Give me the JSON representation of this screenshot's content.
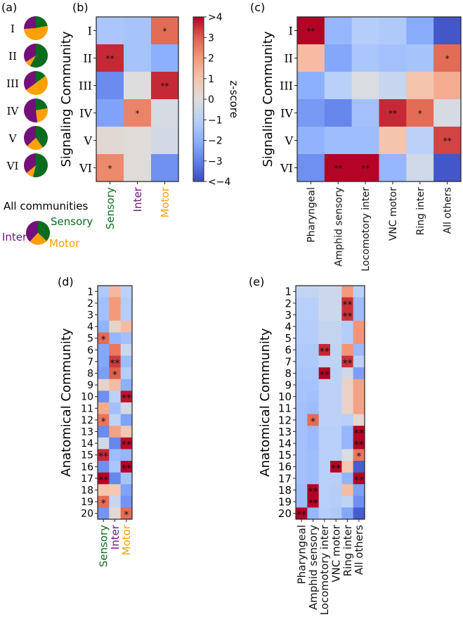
{
  "colors": {
    "sensory": "#0b6b1f",
    "inter": "#74107a",
    "motor": "#ffa000"
  },
  "chart_data": [
    {
      "id": "a",
      "panel_label": "(a)",
      "type": "pie",
      "title": "",
      "order": [
        "Sensory",
        "Motor",
        "Inter"
      ],
      "pies": [
        {
          "label": "I",
          "values": [
            0.22,
            0.52,
            0.26
          ]
        },
        {
          "label": "II",
          "values": [
            0.58,
            0.08,
            0.34
          ]
        },
        {
          "label": "III",
          "values": [
            0.15,
            0.5,
            0.35
          ]
        },
        {
          "label": "IV",
          "values": [
            0.22,
            0.26,
            0.52
          ]
        },
        {
          "label": "V",
          "values": [
            0.4,
            0.23,
            0.37
          ]
        },
        {
          "label": "VI",
          "values": [
            0.54,
            0.1,
            0.36
          ]
        }
      ],
      "summary": {
        "title": "All communities",
        "values": [
          0.37,
          0.25,
          0.38
        ],
        "labels": [
          "Sensory",
          "Motor",
          "Inter"
        ]
      }
    },
    {
      "id": "b",
      "panel_label": "(b)",
      "type": "heatmap",
      "ylabel": "Signaling Community",
      "xlabel": "",
      "rows": [
        "I",
        "II",
        "III",
        "IV",
        "V",
        "VI"
      ],
      "cols": [
        "Sensory",
        "Inter",
        "Motor"
      ],
      "col_colors": [
        "sensory",
        "inter",
        "motor"
      ],
      "values": [
        [
          -1.3,
          -1.4,
          2.8
        ],
        [
          3.6,
          -1.4,
          -2.0
        ],
        [
          -2.8,
          0.0,
          3.6
        ],
        [
          -2.3,
          2.4,
          -0.2
        ],
        [
          0.2,
          0.1,
          -0.3
        ],
        [
          2.3,
          0.1,
          -2.7
        ]
      ],
      "significance": [
        [
          "",
          "",
          "*"
        ],
        [
          "**",
          "",
          ""
        ],
        [
          "",
          "",
          "**"
        ],
        [
          "",
          "*",
          ""
        ],
        [
          "",
          "",
          ""
        ],
        [
          "*",
          "",
          ""
        ]
      ],
      "colorbar": {
        "label": "z-score",
        "range": [
          -4,
          4
        ],
        "ticks": [
          ">4",
          "3",
          "2",
          "1",
          "0",
          "−1",
          "−2",
          "−3",
          "<−4"
        ],
        "tick_values": [
          4,
          3,
          2,
          1,
          0,
          -1,
          -2,
          -3,
          -4
        ],
        "colormap": "coolwarm"
      }
    },
    {
      "id": "c",
      "panel_label": "(c)",
      "type": "heatmap",
      "ylabel": "Signaling Community",
      "xlabel": "",
      "rows": [
        "I",
        "II",
        "III",
        "IV",
        "V",
        "VI"
      ],
      "cols": [
        "Pharyngeal",
        "Amphid sensory",
        "Locomotory inter",
        "VNC motor",
        "Ring inter",
        "All others"
      ],
      "values": [
        [
          4.5,
          -1.8,
          -1.1,
          -1.2,
          -2.1,
          -3.8
        ],
        [
          1.2,
          -2.2,
          -1.3,
          -1.5,
          -1.4,
          2.8
        ],
        [
          -2.0,
          -1.0,
          -0.1,
          -0.6,
          1.0,
          1.6
        ],
        [
          -2.5,
          -2.9,
          -1.5,
          3.6,
          2.8,
          -0.2
        ],
        [
          -1.9,
          -1.6,
          -1.6,
          1.0,
          -0.9,
          3.3
        ],
        [
          -2.7,
          4.5,
          4.5,
          -1.8,
          -0.4,
          -3.8
        ]
      ],
      "significance": [
        [
          "**",
          "",
          "",
          "",
          "",
          ""
        ],
        [
          "",
          "",
          "",
          "",
          "",
          "*"
        ],
        [
          "",
          "",
          "",
          "",
          "",
          ""
        ],
        [
          "",
          "",
          "",
          "**",
          "*",
          ""
        ],
        [
          "",
          "",
          "",
          "",
          "",
          "**"
        ],
        [
          "",
          "**",
          "**",
          "",
          "",
          ""
        ]
      ]
    },
    {
      "id": "d",
      "panel_label": "(d)",
      "type": "heatmap",
      "ylabel": "Anatomical Community",
      "rows": [
        "1",
        "2",
        "3",
        "4",
        "5",
        "6",
        "7",
        "8",
        "9",
        "10",
        "11",
        "12",
        "13",
        "14",
        "15",
        "16",
        "17",
        "18",
        "19",
        "20"
      ],
      "cols": [
        "Sensory",
        "Inter",
        "Motor"
      ],
      "col_colors": [
        "sensory",
        "inter",
        "motor"
      ],
      "values": [
        [
          -1.2,
          1.3,
          -0.9
        ],
        [
          -1.5,
          2.0,
          -1.1
        ],
        [
          -1.5,
          2.0,
          -1.1
        ],
        [
          -1.9,
          0.4,
          1.2
        ],
        [
          2.8,
          -1.8,
          -1.5
        ],
        [
          -2.2,
          2.6,
          -0.5
        ],
        [
          -2.2,
          3.4,
          -1.6
        ],
        [
          -2.4,
          3.0,
          -1.1
        ],
        [
          0.4,
          1.2,
          -2.0
        ],
        [
          -2.7,
          -0.9,
          3.8
        ],
        [
          1.6,
          -1.5,
          -0.3
        ],
        [
          2.6,
          -0.8,
          -2.3
        ],
        [
          -2.8,
          1.8,
          0.9
        ],
        [
          -0.4,
          -2.9,
          3.9
        ],
        [
          3.6,
          -1.6,
          -1.8
        ],
        [
          -2.7,
          -1.3,
          4.2
        ],
        [
          4.2,
          -2.9,
          -1.4
        ],
        [
          1.0,
          0.9,
          -2.3
        ],
        [
          2.8,
          -0.6,
          -2.6
        ],
        [
          -2.6,
          0.2,
          2.8
        ]
      ],
      "significance": [
        [
          "",
          "",
          ""
        ],
        [
          "",
          "",
          ""
        ],
        [
          "",
          "",
          ""
        ],
        [
          "",
          "",
          ""
        ],
        [
          "*",
          "",
          ""
        ],
        [
          "",
          "",
          ""
        ],
        [
          "",
          "**",
          ""
        ],
        [
          "",
          "*",
          ""
        ],
        [
          "",
          "",
          ""
        ],
        [
          "",
          "",
          "**"
        ],
        [
          "",
          "",
          ""
        ],
        [
          "*",
          "",
          ""
        ],
        [
          "",
          "",
          ""
        ],
        [
          "",
          "",
          "**"
        ],
        [
          "**",
          "",
          ""
        ],
        [
          "",
          "",
          "**"
        ],
        [
          "**",
          "",
          ""
        ],
        [
          "",
          "",
          ""
        ],
        [
          "*",
          "",
          ""
        ],
        [
          "",
          "",
          "*"
        ]
      ]
    },
    {
      "id": "e",
      "panel_label": "(e)",
      "type": "heatmap",
      "ylabel": "Anatomical Community",
      "rows": [
        "1",
        "2",
        "3",
        "4",
        "5",
        "6",
        "7",
        "8",
        "9",
        "10",
        "11",
        "12",
        "13",
        "14",
        "15",
        "16",
        "17",
        "18",
        "19",
        "20"
      ],
      "cols": [
        "Pharyngeal",
        "Amphid sensory",
        "Locomotory inter",
        "VNC motor",
        "Ring inter",
        "All others"
      ],
      "values": [
        [
          -0.7,
          -0.7,
          -0.5,
          -0.5,
          2.0,
          -1.0
        ],
        [
          -1.0,
          -1.0,
          -0.5,
          -0.5,
          3.5,
          -1.6
        ],
        [
          -1.0,
          -1.0,
          -0.5,
          -0.5,
          3.5,
          -1.6
        ],
        [
          -1.1,
          -1.1,
          -0.7,
          -0.7,
          -1.1,
          2.1
        ],
        [
          -1.1,
          -1.1,
          -0.7,
          -0.7,
          -1.1,
          2.1
        ],
        [
          -1.2,
          -1.2,
          3.6,
          -0.8,
          2.1,
          -1.7
        ],
        [
          -1.2,
          -1.2,
          -0.8,
          -0.8,
          3.5,
          -0.9
        ],
        [
          -1.3,
          -1.3,
          4.4,
          -0.9,
          -0.3,
          -2.4
        ],
        [
          -1.4,
          -1.4,
          -0.9,
          -0.9,
          0.5,
          1.8
        ],
        [
          -1.4,
          -1.5,
          -0.9,
          -0.9,
          0.5,
          1.8
        ],
        [
          -1.5,
          -1.6,
          -0.9,
          -0.9,
          0.5,
          1.8
        ],
        [
          -1.5,
          2.8,
          -0.9,
          -0.9,
          -1.0,
          0.3
        ],
        [
          -1.5,
          -1.7,
          -1.0,
          -1.0,
          -1.8,
          4.0
        ],
        [
          -1.5,
          -1.7,
          -1.0,
          -1.0,
          -1.8,
          4.0
        ],
        [
          -1.5,
          -1.6,
          -1.0,
          -1.0,
          -0.1,
          2.6
        ],
        [
          -1.5,
          -1.6,
          -1.0,
          4.4,
          0.9,
          -3.7
        ],
        [
          -1.5,
          -1.6,
          -1.0,
          -1.0,
          -1.9,
          4.2
        ],
        [
          -1.6,
          4.4,
          -1.0,
          -1.1,
          1.2,
          -2.3
        ],
        [
          -1.6,
          4.4,
          -1.0,
          -1.1,
          -0.8,
          -2.7
        ],
        [
          4.4,
          -1.8,
          -1.1,
          -1.2,
          -2.2,
          -3.7
        ]
      ],
      "significance": [
        [
          "",
          "",
          "",
          "",
          "",
          ""
        ],
        [
          "",
          "",
          "",
          "",
          "**",
          ""
        ],
        [
          "",
          "",
          "",
          "",
          "**",
          ""
        ],
        [
          "",
          "",
          "",
          "",
          "",
          ""
        ],
        [
          "",
          "",
          "",
          "",
          "",
          ""
        ],
        [
          "",
          "",
          "**",
          "",
          "",
          ""
        ],
        [
          "",
          "",
          "",
          "",
          "**",
          ""
        ],
        [
          "",
          "",
          "**",
          "",
          "",
          ""
        ],
        [
          "",
          "",
          "",
          "",
          "",
          ""
        ],
        [
          "",
          "",
          "",
          "",
          "",
          ""
        ],
        [
          "",
          "",
          "",
          "",
          "",
          ""
        ],
        [
          "",
          "*",
          "",
          "",
          "",
          ""
        ],
        [
          "",
          "",
          "",
          "",
          "",
          "**"
        ],
        [
          "",
          "",
          "",
          "",
          "",
          "**"
        ],
        [
          "",
          "",
          "",
          "",
          "",
          "*"
        ],
        [
          "",
          "",
          "",
          "**",
          "",
          ""
        ],
        [
          "",
          "",
          "",
          "",
          "",
          "**"
        ],
        [
          "",
          "**",
          "",
          "",
          "",
          ""
        ],
        [
          "",
          "**",
          "",
          "",
          "",
          ""
        ],
        [
          "**",
          "",
          "",
          "",
          "",
          ""
        ]
      ]
    }
  ]
}
